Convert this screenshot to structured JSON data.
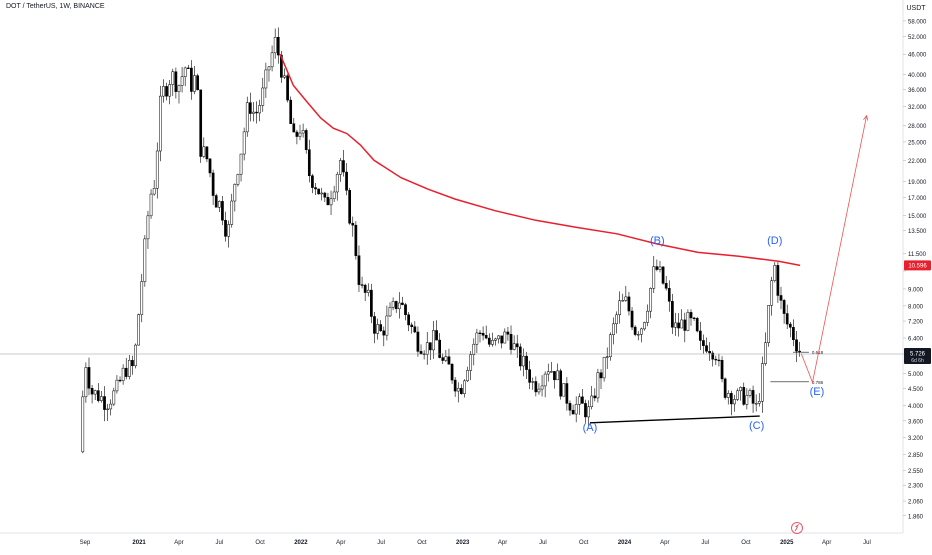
{
  "header": {
    "symbol": "DOT / TetherUS, 1W, BINANCE"
  },
  "chart_data": {
    "type": "candlestick",
    "currency": "USDT",
    "ylim": [
      1.65,
      60
    ],
    "log_scale": true,
    "y_ticks": [
      1.86,
      2.06,
      2.3,
      2.55,
      2.85,
      3.2,
      3.6,
      4.0,
      4.5,
      5.0,
      5.726,
      6.4,
      7.2,
      8.0,
      9.0,
      10.2,
      11.5,
      13.5,
      15.0,
      17.0,
      19.0,
      22.0,
      25.0,
      28.0,
      32.0,
      36.0,
      40.0,
      46.0,
      52.0,
      58.0
    ],
    "y_tick_labels": [
      "1.860",
      "2.060",
      "2.300",
      "2.550",
      "2.850",
      "3.200",
      "3.600",
      "4.000",
      "4.500",
      "5.000",
      "",
      "6.400",
      "7.200",
      "8.000",
      "9.000",
      "",
      "11.500",
      "13.500",
      "15.000",
      "17.000",
      "19.000",
      "22.000",
      "25.000",
      "28.000",
      "32.000",
      "36.000",
      "40.000",
      "46.000",
      "52.000",
      "58.000"
    ],
    "x_ticks": [
      {
        "label": "Sep",
        "date": "2020-09-01"
      },
      {
        "label": "2021",
        "date": "2021-01-01"
      },
      {
        "label": "Apr",
        "date": "2021-04-01"
      },
      {
        "label": "Jul",
        "date": "2021-07-01"
      },
      {
        "label": "Oct",
        "date": "2021-10-01"
      },
      {
        "label": "2022",
        "date": "2022-01-01"
      },
      {
        "label": "Apr",
        "date": "2022-04-01"
      },
      {
        "label": "Jul",
        "date": "2022-07-01"
      },
      {
        "label": "Oct",
        "date": "2022-10-01"
      },
      {
        "label": "2023",
        "date": "2023-01-01"
      },
      {
        "label": "Apr",
        "date": "2023-04-01"
      },
      {
        "label": "Jul",
        "date": "2023-07-01"
      },
      {
        "label": "Oct",
        "date": "2023-10-01"
      },
      {
        "label": "2024",
        "date": "2024-01-01"
      },
      {
        "label": "Apr",
        "date": "2024-04-01"
      },
      {
        "label": "Jul",
        "date": "2024-07-01"
      },
      {
        "label": "Oct",
        "date": "2024-10-01"
      },
      {
        "label": "2025",
        "date": "2025-01-01"
      },
      {
        "label": "Apr",
        "date": "2025-04-01"
      },
      {
        "label": "Jul",
        "date": "2025-07-01"
      }
    ],
    "price_path": [
      [
        "2020-08-20",
        2.9
      ],
      [
        "2020-09-01",
        5.6
      ],
      [
        "2020-09-15",
        4.4
      ],
      [
        "2020-10-01",
        4.3
      ],
      [
        "2020-10-20",
        4.1
      ],
      [
        "2020-11-10",
        4.4
      ],
      [
        "2020-12-01",
        5.2
      ],
      [
        "2020-12-20",
        5.2
      ],
      [
        "2021-01-05",
        9.0
      ],
      [
        "2021-01-25",
        17.0
      ],
      [
        "2021-02-05",
        19.0
      ],
      [
        "2021-02-20",
        35.0
      ],
      [
        "2021-03-01",
        36.0
      ],
      [
        "2021-03-15",
        40.0
      ],
      [
        "2021-03-31",
        37.0
      ],
      [
        "2021-04-15",
        42.0
      ],
      [
        "2021-04-30",
        37.0
      ],
      [
        "2021-05-10",
        40.0
      ],
      [
        "2021-05-20",
        24.0
      ],
      [
        "2021-06-05",
        22.0
      ],
      [
        "2021-06-20",
        17.0
      ],
      [
        "2021-07-05",
        16.0
      ],
      [
        "2021-07-20",
        13.0
      ],
      [
        "2021-08-05",
        19.0
      ],
      [
        "2021-08-20",
        24.0
      ],
      [
        "2021-09-05",
        33.0
      ],
      [
        "2021-09-20",
        30.0
      ],
      [
        "2021-10-05",
        34.0
      ],
      [
        "2021-10-20",
        42.0
      ],
      [
        "2021-11-04",
        50.0
      ],
      [
        "2021-11-15",
        44.0
      ],
      [
        "2021-11-30",
        34.0
      ],
      [
        "2021-12-15",
        25.0
      ],
      [
        "2022-01-01",
        28.0
      ],
      [
        "2022-01-20",
        20.0
      ],
      [
        "2022-02-05",
        18.5
      ],
      [
        "2022-02-25",
        16.0
      ],
      [
        "2022-03-15",
        18.5
      ],
      [
        "2022-03-31",
        22.0
      ],
      [
        "2022-04-15",
        16.5
      ],
      [
        "2022-05-01",
        13.0
      ],
      [
        "2022-05-15",
        9.0
      ],
      [
        "2022-06-01",
        8.5
      ],
      [
        "2022-06-15",
        7.0
      ],
      [
        "2022-07-01",
        6.6
      ],
      [
        "2022-07-20",
        7.5
      ],
      [
        "2022-08-10",
        8.4
      ],
      [
        "2022-09-01",
        7.2
      ],
      [
        "2022-09-20",
        6.3
      ],
      [
        "2022-10-10",
        6.0
      ],
      [
        "2022-11-01",
        6.4
      ],
      [
        "2022-11-15",
        5.4
      ],
      [
        "2022-12-01",
        5.2
      ],
      [
        "2022-12-25",
        4.4
      ],
      [
        "2023-01-10",
        5.3
      ],
      [
        "2023-01-30",
        6.4
      ],
      [
        "2023-02-15",
        6.8
      ],
      [
        "2023-03-05",
        6.0
      ],
      [
        "2023-03-25",
        6.3
      ],
      [
        "2023-04-15",
        6.6
      ],
      [
        "2023-05-05",
        5.6
      ],
      [
        "2023-05-25",
        5.2
      ],
      [
        "2023-06-10",
        4.6
      ],
      [
        "2023-06-25",
        4.8
      ],
      [
        "2023-07-10",
        5.3
      ],
      [
        "2023-07-30",
        5.0
      ],
      [
        "2023-08-15",
        4.4
      ],
      [
        "2023-09-05",
        4.0
      ],
      [
        "2023-09-25",
        4.0
      ],
      [
        "2023-10-15",
        3.8
      ],
      [
        "2023-11-01",
        4.8
      ],
      [
        "2023-11-15",
        5.2
      ],
      [
        "2023-12-01",
        6.4
      ],
      [
        "2023-12-20",
        8.0
      ],
      [
        "2024-01-05",
        8.2
      ],
      [
        "2024-01-25",
        6.8
      ],
      [
        "2024-02-10",
        7.0
      ],
      [
        "2024-02-25",
        8.5
      ],
      [
        "2024-03-10",
        10.5
      ],
      [
        "2024-03-20",
        10.0
      ],
      [
        "2024-04-05",
        8.8
      ],
      [
        "2024-04-20",
        6.8
      ],
      [
        "2024-05-05",
        7.0
      ],
      [
        "2024-05-20",
        7.2
      ],
      [
        "2024-06-05",
        7.0
      ],
      [
        "2024-06-20",
        6.0
      ],
      [
        "2024-07-05",
        6.2
      ],
      [
        "2024-07-25",
        5.8
      ],
      [
        "2024-08-10",
        4.5
      ],
      [
        "2024-08-25",
        4.4
      ],
      [
        "2024-09-10",
        4.2
      ],
      [
        "2024-09-25",
        4.3
      ],
      [
        "2024-10-10",
        4.2
      ],
      [
        "2024-10-25",
        3.9
      ],
      [
        "2024-11-05",
        4.8
      ],
      [
        "2024-11-15",
        6.2
      ],
      [
        "2024-11-25",
        9.0
      ],
      [
        "2024-12-05",
        10.5
      ],
      [
        "2024-12-15",
        8.5
      ],
      [
        "2024-12-28",
        7.2
      ],
      [
        "2025-01-10",
        6.8
      ],
      [
        "2025-01-25",
        6.1
      ],
      [
        "2025-02-03",
        5.73
      ]
    ],
    "moving_average": {
      "color": "#e8202e",
      "value_label": "10.596",
      "points": [
        [
          "2021-11-15",
          46.0
        ],
        [
          "2021-12-15",
          37.0
        ],
        [
          "2022-01-15",
          33.0
        ],
        [
          "2022-02-15",
          29.5
        ],
        [
          "2022-03-15",
          27.5
        ],
        [
          "2022-04-15",
          26.5
        ],
        [
          "2022-05-15",
          24.5
        ],
        [
          "2022-06-15",
          22.0
        ],
        [
          "2022-08-15",
          19.5
        ],
        [
          "2022-10-15",
          18.0
        ],
        [
          "2022-12-15",
          16.8
        ],
        [
          "2023-03-15",
          15.5
        ],
        [
          "2023-06-15",
          14.5
        ],
        [
          "2023-09-15",
          13.8
        ],
        [
          "2023-12-15",
          13.2
        ],
        [
          "2024-03-15",
          12.3
        ],
        [
          "2024-06-15",
          11.6
        ],
        [
          "2024-09-15",
          11.3
        ],
        [
          "2024-12-15",
          10.9
        ],
        [
          "2025-01-31",
          10.6
        ]
      ]
    },
    "support_line": {
      "from": [
        "2023-10-15",
        3.55
      ],
      "to": [
        "2024-11-01",
        3.72
      ]
    },
    "wave_labels": [
      {
        "label": "(A)",
        "date": "2023-10-15",
        "price": 3.35
      },
      {
        "label": "(B)",
        "date": "2024-03-15",
        "price": 12.3
      },
      {
        "label": "(C)",
        "date": "2024-10-25",
        "price": 3.4
      },
      {
        "label": "(D)",
        "date": "2024-12-05",
        "price": 12.3
      },
      {
        "label": "(E)",
        "date": "2025-03-10",
        "price": 4.3
      }
    ],
    "fib_levels": [
      {
        "label": "0.618",
        "price": 5.8,
        "from": "2025-01-15",
        "to": "2025-02-20"
      },
      {
        "label": "0.786",
        "price": 4.72,
        "from": "2024-11-25",
        "to": "2025-02-20"
      }
    ],
    "projection": {
      "color": "#ef5350",
      "points": [
        [
          "2025-02-03",
          5.73
        ],
        [
          "2025-02-28",
          4.7
        ],
        [
          "2025-06-30",
          30.0
        ]
      ]
    },
    "current_price": {
      "value": 5.726,
      "label": "5.726",
      "countdown": "6d 6h"
    }
  }
}
